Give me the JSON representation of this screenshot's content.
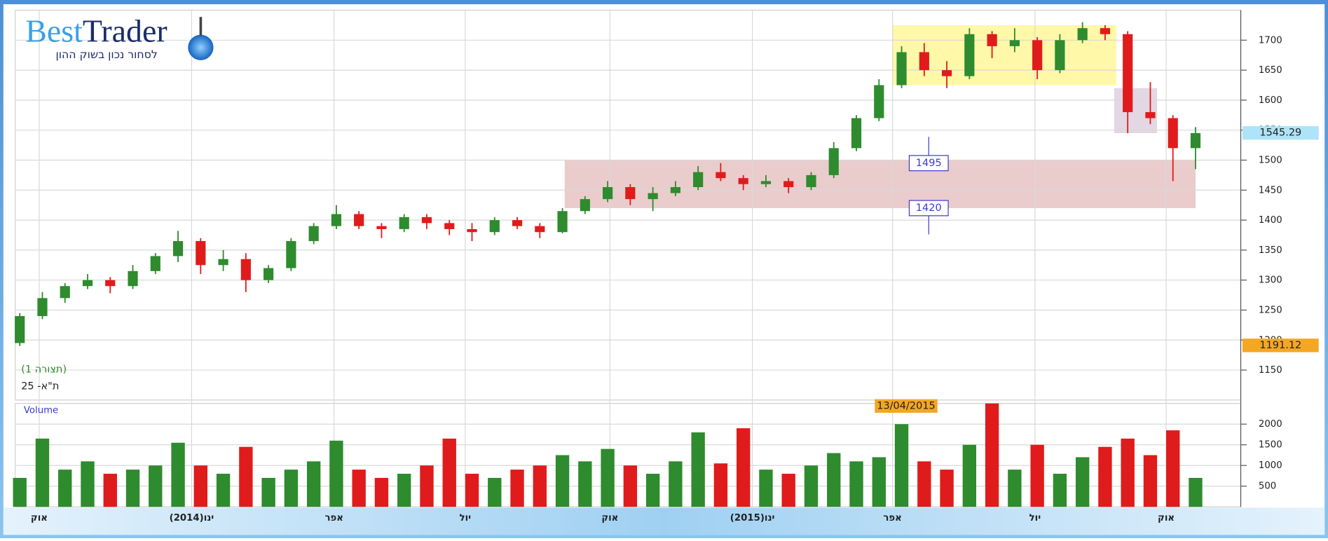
{
  "logo": {
    "brand_a": "Best",
    "brand_b": "Trader",
    "tagline": "לסחור נכון בשוק ההון"
  },
  "chart_data": [
    {
      "type": "candlestick",
      "title": "ת\"א- 25",
      "subtitle": "(תצורה 1)",
      "up_color": "#2e8b2e",
      "down_color": "#e01b1b",
      "xlim": [
        -0.2,
        54
      ],
      "ylim": [
        1100,
        1750
      ],
      "yticks": [
        1150,
        1200,
        1250,
        1300,
        1350,
        1400,
        1450,
        1500,
        1550,
        1600,
        1650,
        1700
      ],
      "grid": true,
      "open": [
        1195,
        1240,
        1270,
        1290,
        1300,
        1290,
        1315,
        1340,
        1365,
        1325,
        1335,
        1300,
        1320,
        1365,
        1390,
        1410,
        1390,
        1385,
        1405,
        1395,
        1385,
        1380,
        1400,
        1390,
        1380,
        1415,
        1435,
        1455,
        1435,
        1445,
        1455,
        1480,
        1470,
        1460,
        1465,
        1455,
        1475,
        1520,
        1570,
        1625,
        1680,
        1650,
        1640,
        1710,
        1690,
        1700,
        1650,
        1700,
        1720,
        1710,
        1580,
        1570,
        1520
      ],
      "high": [
        1245,
        1280,
        1295,
        1310,
        1305,
        1325,
        1345,
        1382,
        1370,
        1350,
        1345,
        1325,
        1370,
        1395,
        1425,
        1415,
        1395,
        1410,
        1410,
        1400,
        1395,
        1405,
        1405,
        1395,
        1420,
        1440,
        1465,
        1460,
        1455,
        1465,
        1490,
        1495,
        1475,
        1475,
        1470,
        1480,
        1530,
        1575,
        1635,
        1690,
        1695,
        1665,
        1720,
        1715,
        1720,
        1705,
        1710,
        1730,
        1725,
        1715,
        1630,
        1575,
        1555
      ],
      "low": [
        1190,
        1235,
        1262,
        1285,
        1278,
        1285,
        1310,
        1330,
        1310,
        1315,
        1280,
        1295,
        1315,
        1360,
        1385,
        1385,
        1370,
        1380,
        1385,
        1375,
        1365,
        1375,
        1385,
        1370,
        1378,
        1410,
        1430,
        1425,
        1415,
        1440,
        1450,
        1465,
        1450,
        1455,
        1445,
        1450,
        1470,
        1515,
        1565,
        1620,
        1640,
        1620,
        1635,
        1670,
        1680,
        1635,
        1645,
        1695,
        1700,
        1545,
        1560,
        1465,
        1485
      ],
      "close": [
        1240,
        1270,
        1290,
        1300,
        1290,
        1315,
        1340,
        1365,
        1325,
        1335,
        1300,
        1320,
        1365,
        1390,
        1410,
        1390,
        1385,
        1405,
        1395,
        1385,
        1380,
        1400,
        1390,
        1380,
        1415,
        1435,
        1455,
        1435,
        1445,
        1455,
        1480,
        1470,
        1460,
        1465,
        1455,
        1475,
        1520,
        1570,
        1625,
        1680,
        1650,
        1640,
        1710,
        1690,
        1700,
        1650,
        1700,
        1720,
        1710,
        1580,
        1570,
        1520,
        1545
      ],
      "zones": [
        {
          "x": [
            24.1,
            52.0
          ],
          "y": [
            1420,
            1500
          ],
          "color": "#e6c3c3"
        },
        {
          "x": [
            38.6,
            48.5
          ],
          "y": [
            1625,
            1725
          ],
          "color": "#fff799"
        },
        {
          "x": [
            48.4,
            50.3
          ],
          "y": [
            1545,
            1620
          ],
          "color": "#ddd0de"
        }
      ],
      "levels": [
        {
          "value": 1495,
          "x": 40.2
        },
        {
          "value": 1420,
          "x": 40.2
        }
      ],
      "price_labels": [
        {
          "value": 1545.29,
          "color": "#aee4f7"
        },
        {
          "value": 1191.12,
          "color": "#f5a623"
        }
      ]
    },
    {
      "type": "bar",
      "title": "Volume",
      "xlim": [
        -0.2,
        54
      ],
      "ylim": [
        0,
        2500
      ],
      "yticks": [
        500,
        1000,
        1500,
        2000
      ],
      "values": [
        700,
        1650,
        900,
        1100,
        800,
        900,
        1000,
        1550,
        1000,
        800,
        1450,
        700,
        900,
        1100,
        1600,
        900,
        700,
        800,
        1000,
        1650,
        800,
        700,
        900,
        1000,
        1250,
        1100,
        1400,
        1000,
        800,
        1100,
        1800,
        1050,
        1900,
        900,
        800,
        1000,
        1300,
        1100,
        1200,
        2000,
        1100,
        900,
        1500,
        2500,
        900,
        1500,
        800,
        1200,
        1450,
        1650,
        1250,
        1850,
        700
      ],
      "date_marker": {
        "x": 39.2,
        "label": "13/04/2015"
      },
      "xticks": [
        {
          "value": 0.86,
          "label": "אוק"
        },
        {
          "value": 7.6,
          "label": "ינו(2014)"
        },
        {
          "value": 13.9,
          "label": "אפר"
        },
        {
          "value": 19.7,
          "label": "יול"
        },
        {
          "value": 26.1,
          "label": "אוק"
        },
        {
          "value": 32.4,
          "label": "ינו(2015)"
        },
        {
          "value": 38.6,
          "label": "אפר"
        },
        {
          "value": 44.9,
          "label": "יול"
        },
        {
          "value": 50.7,
          "label": "אוק"
        }
      ]
    }
  ]
}
